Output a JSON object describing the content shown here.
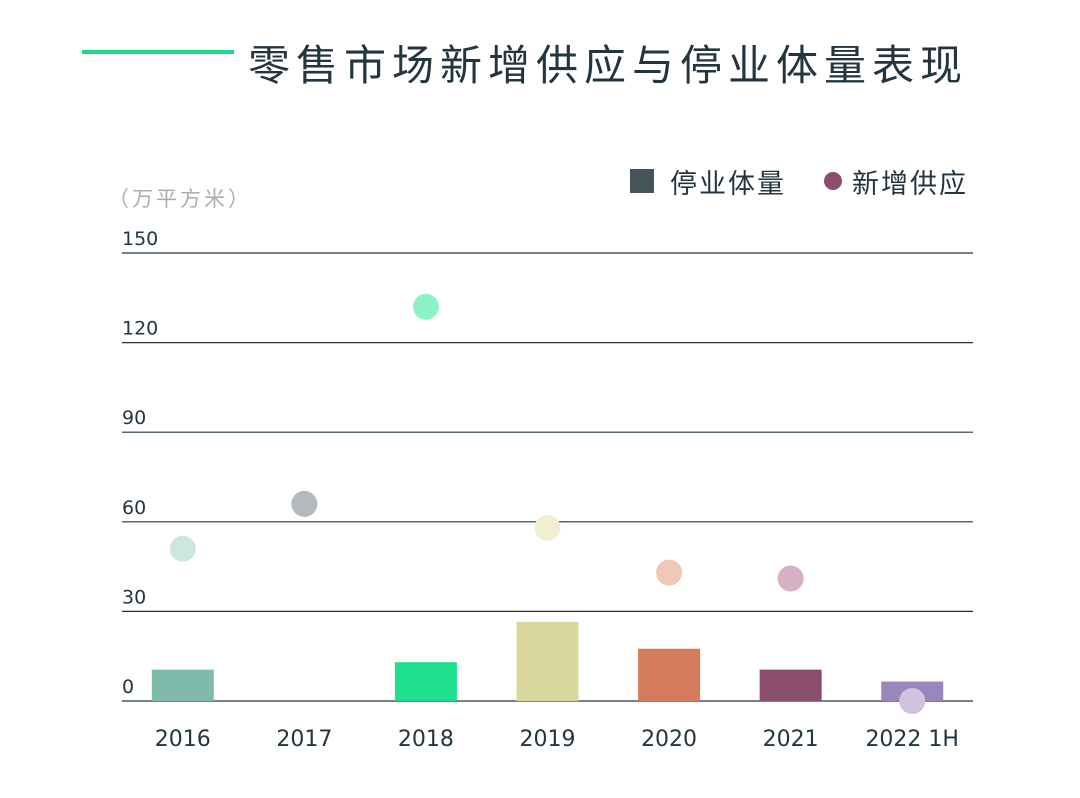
{
  "title": "零售市场新增供应与停业体量表现",
  "chart_data": {
    "type": "bar",
    "unit_label": "（万平方米）",
    "categories": [
      "2016",
      "2017",
      "2018",
      "2019",
      "2020",
      "2021",
      "2022 1H"
    ],
    "yticks": [
      "150",
      "120",
      "90",
      "60",
      "30",
      "0"
    ],
    "ylim": [
      0,
      150
    ],
    "grid": true,
    "legend_position": "top-right",
    "legend": [
      {
        "name": "停业体量",
        "marker": "square"
      },
      {
        "name": "新增供应",
        "marker": "dot"
      }
    ],
    "series": [
      {
        "name": "停业体量",
        "kind": "bar",
        "values": [
          10.5,
          0,
          13,
          26.5,
          17.5,
          10.5,
          6.5
        ]
      },
      {
        "name": "新增供应",
        "kind": "dot",
        "values": [
          51,
          66,
          132,
          58,
          43,
          41,
          0
        ]
      }
    ],
    "colors": {
      "bars": [
        "#7fbaaa",
        "#b4b9bc",
        "#1ee08c",
        "#d9d79e",
        "#d47b5c",
        "#8a4d6b",
        "#9b85bc"
      ],
      "dots": [
        "#cde7e0",
        "#b4b9bc",
        "#8ef2c5",
        "#f2efd0",
        "#f0c8b6",
        "#d7b0c5",
        "#cfc3de"
      ],
      "grid": "#233640",
      "title_rule": "#1fd98e"
    }
  }
}
